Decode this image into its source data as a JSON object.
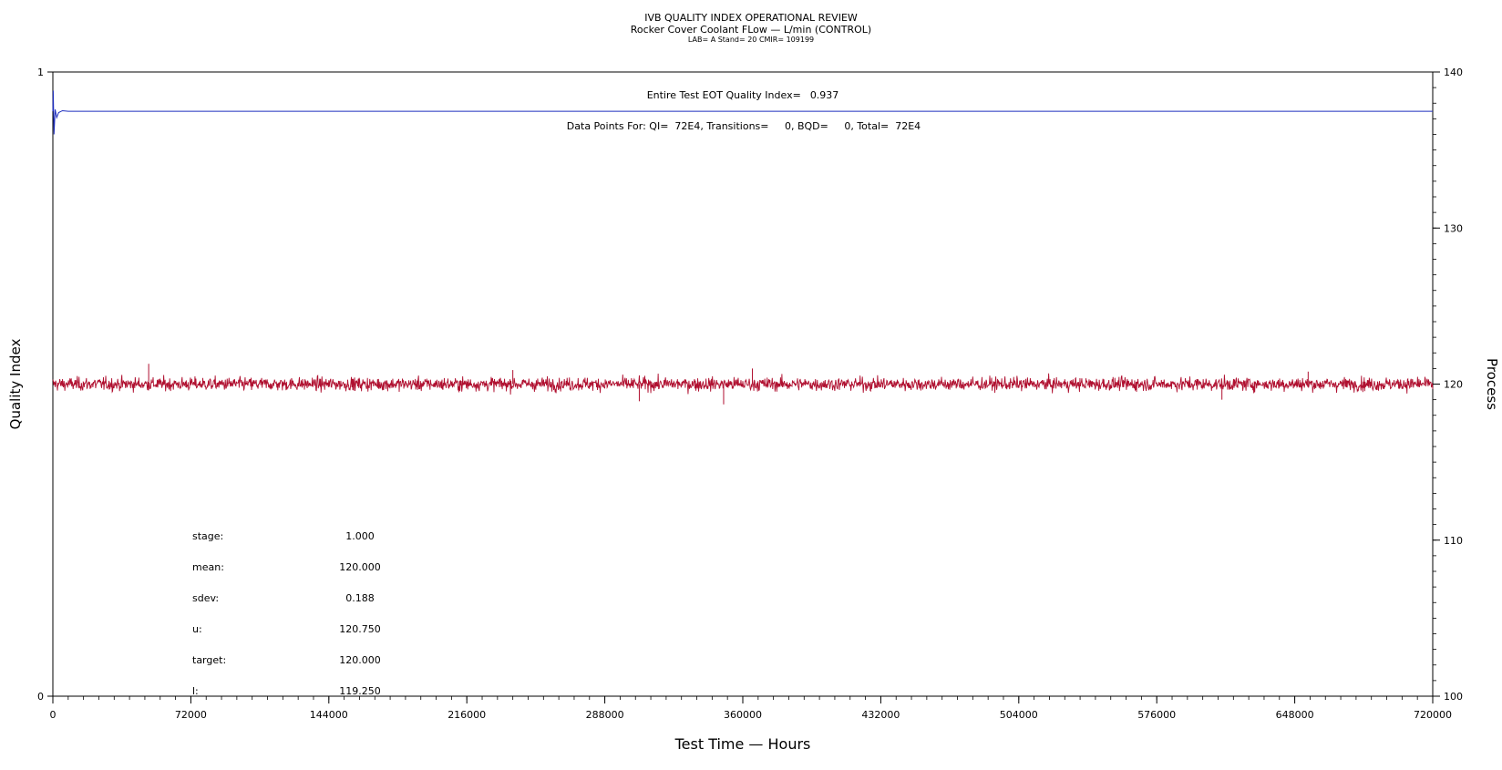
{
  "chart_data": {
    "type": "line",
    "title": "IVB QUALITY INDEX OPERATIONAL REVIEW",
    "subtitle": "Rocker Cover Coolant FLow — L/min (CONTROL)",
    "subtitle2": "LAB= A Stand= 20 CMIR= 109199",
    "xlabel": "Test Time — Hours",
    "ylabel_left": "Quality Index",
    "ylabel_right": "Process",
    "xlim": [
      0,
      720000
    ],
    "ylim_left": [
      0,
      1
    ],
    "ylim_right": [
      100,
      140
    ],
    "x_ticks": [
      "0",
      "72000",
      "144000",
      "216000",
      "288000",
      "360000",
      "432000",
      "504000",
      "576000",
      "648000",
      "720000"
    ],
    "x_tick_values": [
      0,
      72000,
      144000,
      216000,
      288000,
      360000,
      432000,
      504000,
      576000,
      648000,
      720000
    ],
    "y_left_ticks": [
      "0",
      "1"
    ],
    "y_left_tick_values": [
      0,
      1
    ],
    "y_right_ticks": [
      "100",
      "110",
      "120",
      "130",
      "140"
    ],
    "y_right_tick_values": [
      100,
      110,
      120,
      130,
      140
    ],
    "series": [
      {
        "axis": "left",
        "color": "#1f2fbf",
        "x": [
          0,
          200,
          600,
          1200,
          2000,
          3000,
          5000,
          8000,
          12000,
          20000,
          60000,
          120000,
          175000,
          176000,
          300000,
          500000,
          720000
        ],
        "y": [
          0.937,
          0.97,
          0.9,
          0.94,
          0.927,
          0.935,
          0.938,
          0.937,
          0.937,
          0.937,
          0.937,
          0.937,
          0.937,
          0.937,
          0.937,
          0.937,
          0.937
        ]
      },
      {
        "axis": "right",
        "color": "#b01030",
        "mean": 120.0,
        "sdev": 0.188,
        "x_range": [
          0,
          720000
        ],
        "spikes": [
          {
            "x": 50000,
            "y": 121.3
          },
          {
            "x": 240000,
            "y": 120.9
          },
          {
            "x": 350000,
            "y": 118.7
          },
          {
            "x": 306000,
            "y": 118.9
          },
          {
            "x": 365000,
            "y": 121.0
          },
          {
            "x": 610000,
            "y": 119.0
          },
          {
            "x": 655000,
            "y": 120.8
          }
        ]
      }
    ],
    "annotations": {
      "eot_label": "Entire Test EOT Quality Index=",
      "eot_value": "0.937",
      "datapoints_text": "Data Points For: QI=  72E4, Transitions=     0, BQD=     0, Total=  72E4"
    },
    "stats": [
      {
        "label": "stage:",
        "value": "1.000"
      },
      {
        "label": "mean:",
        "value": "120.000"
      },
      {
        "label": "sdev:",
        "value": "0.188"
      },
      {
        "label": "u:",
        "value": "120.750"
      },
      {
        "label": "target:",
        "value": "120.000"
      },
      {
        "label": "l:",
        "value": "119.250"
      }
    ]
  }
}
